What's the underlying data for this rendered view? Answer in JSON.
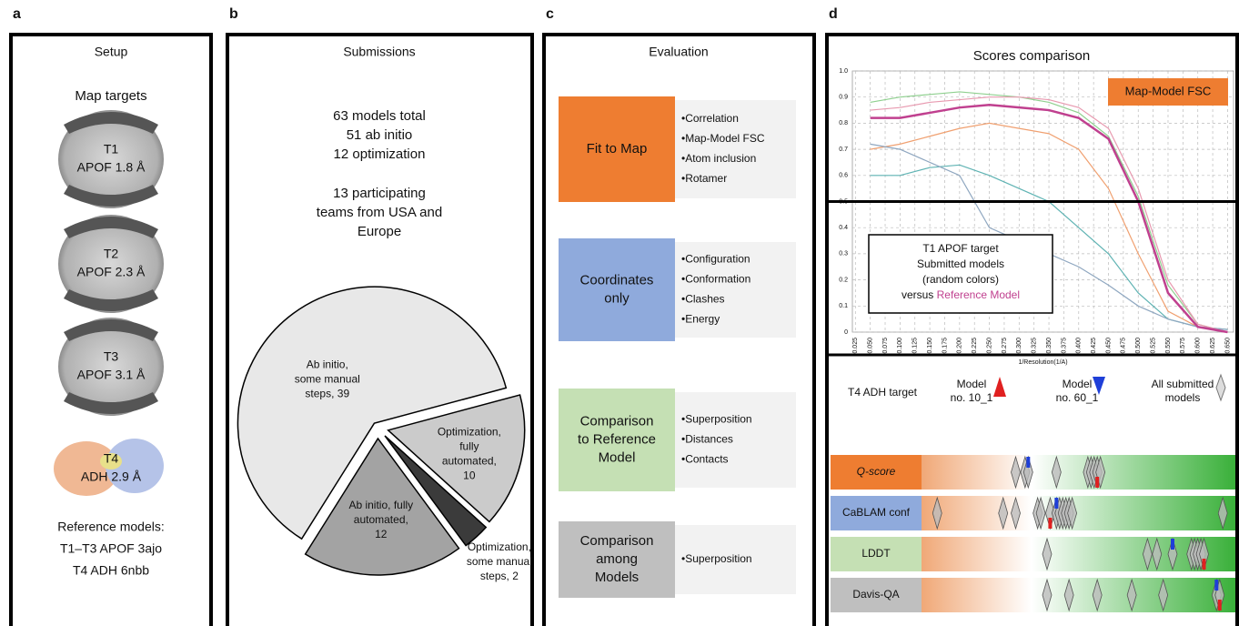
{
  "panel_a": {
    "letter": "a",
    "title": "Setup",
    "subtitle": "Map targets",
    "targets": [
      {
        "id": "T1",
        "label": "APOF 1.8 Å"
      },
      {
        "id": "T2",
        "label": "APOF 2.3 Å"
      },
      {
        "id": "T3",
        "label": "APOF 3.1 Å"
      },
      {
        "id": "T4",
        "label": "ADH 2.9 Å"
      }
    ],
    "reference": [
      "Reference models:",
      "T1–T3 APOF 3ajo",
      "T4 ADH 6nbb"
    ]
  },
  "panel_b": {
    "letter": "b",
    "title": "Submissions",
    "summary": [
      "63 models total",
      "51 ab initio",
      "12 optimization"
    ],
    "teams": [
      "13 participating",
      "teams from USA and",
      "Europe"
    ],
    "pie": {
      "type": "pie",
      "slices": [
        {
          "label": [
            "Optimization,",
            "fully",
            "automated,"
          ],
          "value": 10,
          "color": "#cbcbcb"
        },
        {
          "label": [
            "Optimization,",
            "some manual",
            "steps,"
          ],
          "value": 2,
          "color": "#3b3b3b"
        },
        {
          "label": [
            "Ab initio, fully",
            "automated,"
          ],
          "value": 12,
          "color": "#a3a3a3"
        },
        {
          "label": [
            "Ab initio,",
            "some manual",
            "steps,"
          ],
          "value": 39,
          "color": "#e8e8e8"
        }
      ]
    }
  },
  "panel_c": {
    "letter": "c",
    "title": "Evaluation",
    "boxes": [
      {
        "title": [
          "Fit to Map"
        ],
        "color": "#ee7d31",
        "items": [
          "•Correlation",
          "•Map-Model FSC",
          "•Atom inclusion",
          "•Rotamer"
        ]
      },
      {
        "title": [
          "Coordinates",
          "only"
        ],
        "color": "#8faadc",
        "items": [
          "•Configuration",
          "•Conformation",
          "•Clashes",
          "•Energy"
        ]
      },
      {
        "title": [
          "Comparison",
          "to Reference",
          "Model"
        ],
        "color": "#c5e0b4",
        "items": [
          "•Superposition",
          "•Distances",
          "•Contacts"
        ]
      },
      {
        "title": [
          "Comparison",
          "among",
          "Models"
        ],
        "color": "#bfbfbf",
        "items": [
          "•Superposition"
        ]
      }
    ]
  },
  "panel_d": {
    "letter": "d",
    "title": "Scores comparison",
    "chart": {
      "type": "line",
      "annotation": "Map-Model FSC",
      "xlabel": "1/Resolution(1/A)",
      "box": [
        "T1 APOF target",
        "Submitted models",
        "(random colors)"
      ],
      "box_versus": "versus",
      "box_reference": "Reference Model",
      "threshold": 0.5,
      "x": [
        0.05,
        0.1,
        0.15,
        0.2,
        0.25,
        0.3,
        0.35,
        0.4,
        0.45,
        0.5,
        0.55,
        0.6,
        0.65
      ],
      "series": [
        {
          "color": "#5fb3b3",
          "values": [
            0.6,
            0.6,
            0.63,
            0.64,
            0.6,
            0.55,
            0.5,
            0.4,
            0.3,
            0.15,
            0.05,
            0.02,
            0.01
          ]
        },
        {
          "color": "#f0a070",
          "values": [
            0.7,
            0.72,
            0.75,
            0.78,
            0.8,
            0.78,
            0.76,
            0.7,
            0.55,
            0.3,
            0.08,
            0.02,
            0
          ]
        },
        {
          "color": "#8fd08f",
          "values": [
            0.88,
            0.9,
            0.91,
            0.92,
            0.91,
            0.9,
            0.88,
            0.84,
            0.75,
            0.52,
            0.18,
            0.03,
            0
          ]
        },
        {
          "color": "#8fa7c0",
          "values": [
            0.72,
            0.7,
            0.65,
            0.6,
            0.4,
            0.35,
            0.3,
            0.25,
            0.18,
            0.1,
            0.05,
            0.02,
            0.01
          ]
        },
        {
          "color": "#e89ab0",
          "values": [
            0.85,
            0.86,
            0.88,
            0.89,
            0.9,
            0.9,
            0.89,
            0.86,
            0.78,
            0.55,
            0.2,
            0.03,
            0
          ]
        },
        {
          "color": "#c0408f",
          "values": [
            0.82,
            0.82,
            0.84,
            0.86,
            0.87,
            0.86,
            0.85,
            0.82,
            0.74,
            0.5,
            0.15,
            0.02,
            0
          ]
        }
      ],
      "xlim": [
        0.02,
        0.66
      ],
      "ylim": [
        0,
        1
      ],
      "yticks": [
        0,
        0.1,
        0.2,
        0.3,
        0.4,
        0.5,
        0.6,
        0.7,
        0.8,
        0.9,
        {
          "value": 1,
          "label": "1.0"
        }
      ],
      "xticks": [
        0.025,
        {
          "value": 0.05,
          "label": "0.050"
        },
        0.075,
        {
          "value": 0.1,
          "label": "0.100"
        },
        0.125,
        {
          "value": 0.15,
          "label": "0.150"
        },
        0.175,
        {
          "value": 0.2,
          "label": "0.200"
        },
        0.225,
        {
          "value": 0.25,
          "label": "0.250"
        },
        0.275,
        {
          "value": 0.3,
          "label": "0.300"
        },
        0.325,
        {
          "value": 0.35,
          "label": "0.350"
        },
        0.375,
        {
          "value": 0.4,
          "label": "0.400"
        },
        0.425,
        {
          "value": 0.45,
          "label": "0.450"
        },
        0.475,
        {
          "value": 0.5,
          "label": "0.500"
        },
        0.525,
        {
          "value": 0.55,
          "label": "0.550"
        },
        0.575,
        {
          "value": 0.6,
          "label": "0.600"
        },
        0.625,
        {
          "value": 0.65,
          "label": "0.650"
        }
      ],
      "grid": true
    },
    "ranking": {
      "target": "T4 ADH target",
      "legend_red": [
        "Model",
        "no. 10_1"
      ],
      "legend_blue": [
        "Model",
        "no. 60_1"
      ],
      "legend_all": [
        "All submitted",
        "models"
      ],
      "rows": [
        {
          "label": "Q-score",
          "color": "#ee7d31",
          "models": [
            30,
            33,
            34,
            43,
            53,
            54,
            55,
            56,
            57
          ],
          "red": 56,
          "blue": 34
        },
        {
          "label": "CaBLAM conf",
          "color": "#8faadc",
          "models": [
            5,
            26,
            30,
            37,
            38,
            41,
            43,
            44,
            45,
            46,
            47,
            48,
            96
          ],
          "red": 41,
          "blue": 43
        },
        {
          "label": "LDDT",
          "color": "#c5e0b4",
          "models": [
            40,
            72,
            75,
            80,
            86,
            87,
            88,
            89,
            90
          ],
          "red": 90,
          "blue": 80
        },
        {
          "label": "Davis-QA",
          "color": "#bfbfbf",
          "models": [
            40,
            47,
            56,
            67,
            77,
            94,
            95
          ],
          "red": 95,
          "blue": 94
        }
      ]
    }
  }
}
